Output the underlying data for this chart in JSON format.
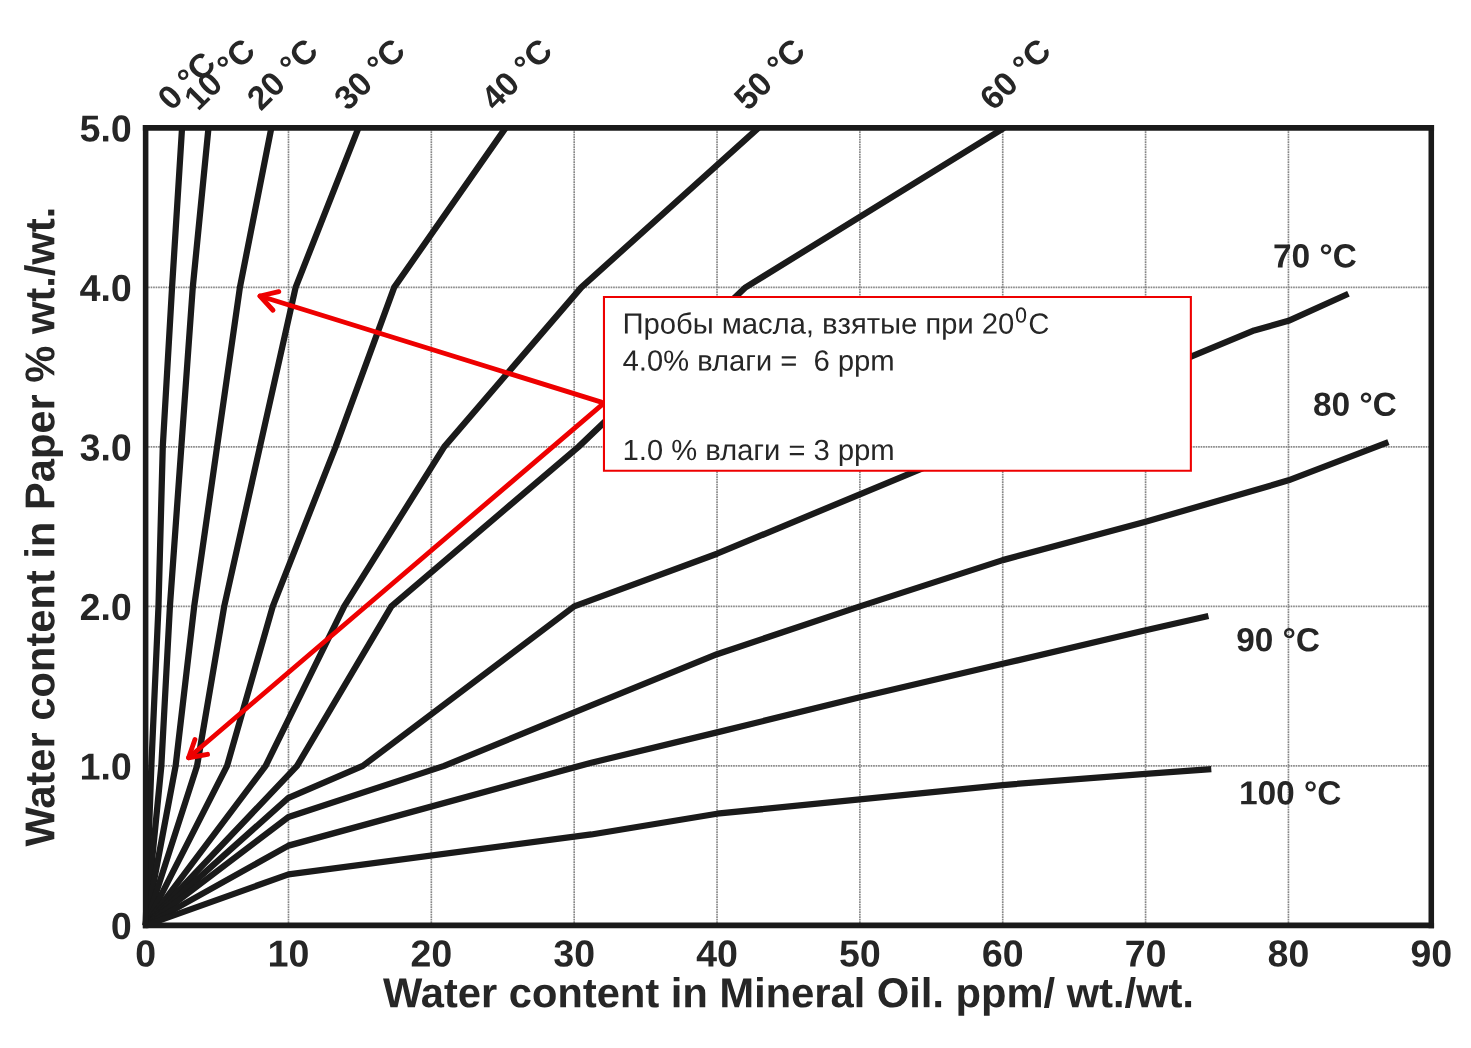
{
  "chart_data": {
    "type": "line",
    "xlabel": "Water content in Mineral Oil. ppm/ wt./wt.",
    "ylabel": "Water content in Paper % wt./wt.",
    "xlim": [
      0,
      90
    ],
    "xticks": [
      0,
      10,
      20,
      30,
      40,
      50,
      60,
      70,
      80,
      90
    ],
    "ylim": [
      0,
      5
    ],
    "yticks": [
      0,
      {
        "value": 1,
        "label": "1.0"
      },
      {
        "value": 2,
        "label": "2.0"
      },
      {
        "value": 3,
        "label": "3.0"
      },
      {
        "value": 4,
        "label": "4.0"
      },
      {
        "value": 5,
        "label": "5.0"
      }
    ],
    "grid": true,
    "marker": "none",
    "line_style": "solid",
    "series": [
      {
        "name": "0 °C",
        "color": "#1a1a1a",
        "x": [
          0,
          0.4,
          0.9,
          1.2,
          1.85,
          2.55
        ],
        "values": [
          0,
          1,
          2,
          3,
          4,
          5
        ]
      },
      {
        "name": "10 °C",
        "color": "#1a1a1a",
        "x": [
          0,
          1.1,
          1.7,
          2.5,
          3.3,
          4.4
        ],
        "values": [
          0,
          1,
          2,
          3,
          4,
          5
        ]
      },
      {
        "name": "20 °C",
        "color": "#1a1a1a",
        "x": [
          0,
          2.1,
          3.4,
          5.0,
          6.6,
          8.8
        ],
        "values": [
          0,
          1,
          2,
          3,
          4,
          5
        ]
      },
      {
        "name": "30 °C",
        "color": "#1a1a1a",
        "x": [
          0,
          3.6,
          5.5,
          8.0,
          10.5,
          14.9
        ],
        "values": [
          0,
          1,
          2,
          3,
          4,
          5
        ]
      },
      {
        "name": "40 °C",
        "color": "#1a1a1a",
        "x": [
          0,
          5.7,
          8.9,
          13.3,
          17.4,
          25.2
        ],
        "values": [
          0,
          1,
          2,
          3,
          4,
          5
        ]
      },
      {
        "name": "50 °C",
        "color": "#1a1a1a",
        "x": [
          0,
          8.4,
          13.9,
          20.9,
          30.5,
          42.9
        ],
        "values": [
          0,
          1,
          2,
          3,
          4,
          5
        ]
      },
      {
        "name": "60 °C",
        "color": "#1a1a1a",
        "x": [
          0,
          10.6,
          17.2,
          30.3,
          42,
          60.1
        ],
        "values": [
          0,
          1,
          2,
          3,
          4,
          5
        ]
      },
      {
        "name": "70 °C",
        "color": "#1a1a1a",
        "x": [
          0,
          10,
          15.2,
          30,
          40,
          77.6,
          80,
          84.2
        ],
        "values": [
          0,
          0.8,
          1,
          2,
          2.33,
          3.73,
          3.79,
          3.96
        ]
      },
      {
        "name": "80 °C",
        "color": "#1a1a1a",
        "x": [
          0,
          10,
          20.9,
          31.2,
          40,
          50,
          60,
          70,
          80,
          87
        ],
        "values": [
          0,
          0.68,
          1,
          1.38,
          1.7,
          2.0,
          2.29,
          2.53,
          2.79,
          3.03
        ]
      },
      {
        "name": "90 °C",
        "color": "#1a1a1a",
        "x": [
          0,
          10,
          31.2,
          40,
          50,
          60,
          70,
          74.4
        ],
        "values": [
          0,
          0.5,
          1.02,
          1.21,
          1.43,
          1.64,
          1.85,
          1.94
        ]
      },
      {
        "name": "100 °C",
        "color": "#1a1a1a",
        "x": [
          0,
          10,
          31.2,
          40,
          50,
          60,
          70,
          74.6
        ],
        "values": [
          0,
          0.32,
          0.57,
          0.7,
          0.79,
          0.88,
          0.95,
          0.98
        ]
      }
    ],
    "annotations": [
      "Пробы масла, взятые при 20$^{0}$C\n4.0% влаги =  6 ppm",
      "1.0 % влаги = 3 ppm"
    ]
  }
}
